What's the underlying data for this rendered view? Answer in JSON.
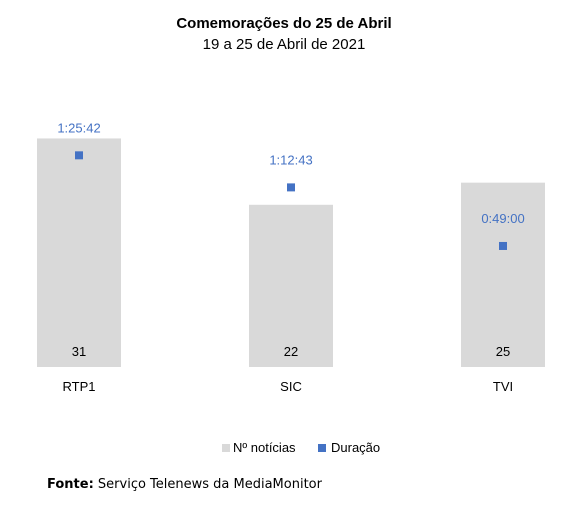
{
  "chart_data": {
    "type": "bar",
    "title": "Comemorações do 25 de Abril",
    "subtitle": "19 a 25 de Abril de 2021",
    "categories": [
      "RTP1",
      "SIC",
      "TVI"
    ],
    "series": [
      {
        "name": "Nº notícias",
        "kind": "bar",
        "color": "#d9d9d9",
        "values": [
          31,
          22,
          25
        ],
        "labels": [
          "31",
          "22",
          "25"
        ]
      },
      {
        "name": "Duração",
        "kind": "scatter",
        "color": "#4472c4",
        "values_seconds": [
          5142,
          4363,
          2940
        ],
        "labels": [
          "1:25:42",
          "1:12:43",
          "0:49:00"
        ]
      }
    ],
    "bar_axis_range": [
      0,
      33.5
    ],
    "duration_axis_range_seconds": [
      0,
      6000
    ],
    "grid": false,
    "legend": "bottom-center"
  },
  "source": {
    "label": "Fonte:",
    "text": " Serviço Telenews da MediaMonitor"
  }
}
